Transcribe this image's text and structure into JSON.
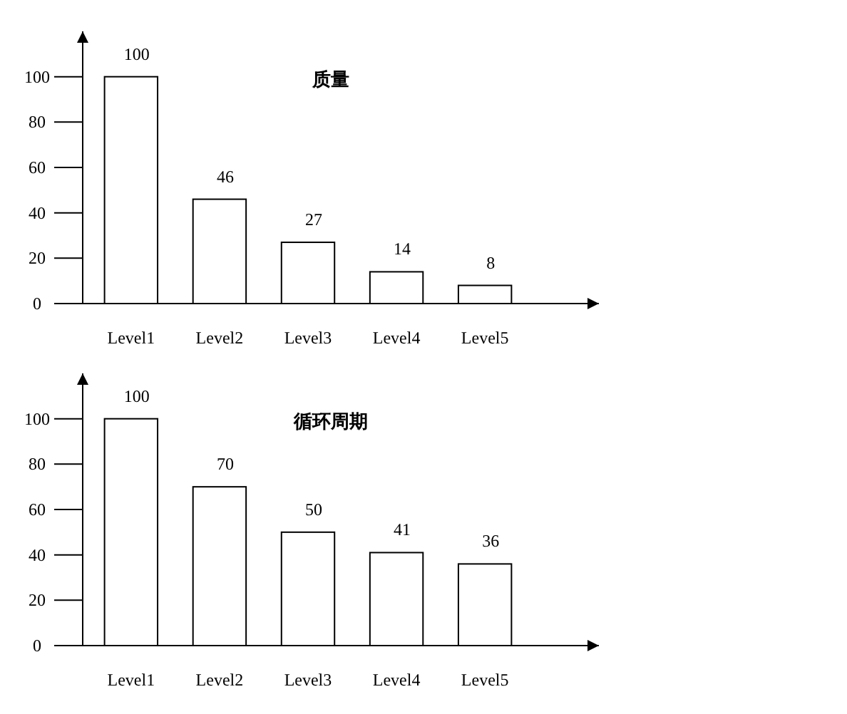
{
  "chart_data": [
    {
      "type": "bar",
      "title": "质量",
      "categories": [
        "Level1",
        "Level2",
        "Level3",
        "Level4",
        "Level5"
      ],
      "values": [
        100,
        46,
        27,
        14,
        8
      ],
      "color": "#ffffff",
      "ylim": [
        0,
        120
      ],
      "yticks": [
        0,
        20,
        40,
        60,
        80,
        100
      ],
      "data_labels": true,
      "grid": false
    },
    {
      "type": "bar",
      "title": "循环周期",
      "categories": [
        "Level1",
        "Level2",
        "Level3",
        "Level4",
        "Level5"
      ],
      "values": [
        100,
        70,
        50,
        41,
        36
      ],
      "color": "#ffffff",
      "ylim": [
        0,
        120
      ],
      "yticks": [
        0,
        20,
        40,
        60,
        80,
        100
      ],
      "data_labels": true,
      "grid": false
    }
  ]
}
